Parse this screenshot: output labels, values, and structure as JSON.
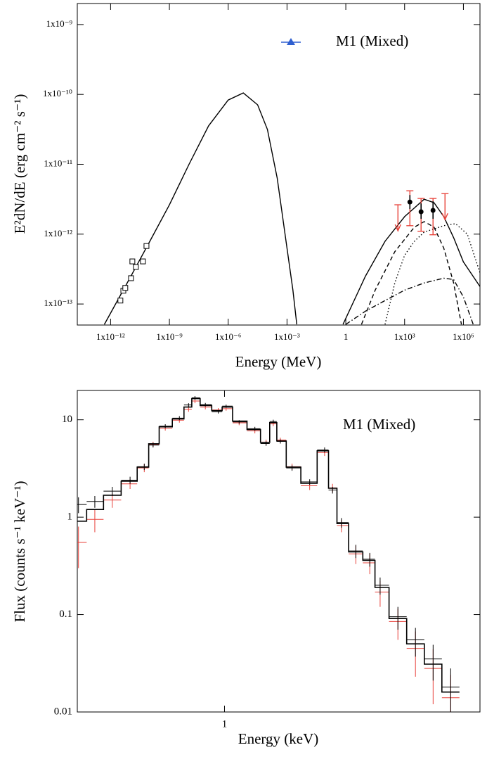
{
  "chart_data": [
    {
      "type": "line",
      "xlabel": "Energy (MeV)",
      "ylabel": "E²dN/dE (erg cm⁻² s⁻¹)",
      "xscale": "log",
      "yscale": "log",
      "xlim": [
        2e-14,
        7000000.0
      ],
      "ylim": [
        5e-14,
        2e-09
      ],
      "xticks": [
        {
          "value": 1e-12,
          "label": "1x10⁻¹²"
        },
        {
          "value": 1e-09,
          "label": "1x10⁻⁹"
        },
        {
          "value": 1e-06,
          "label": "1x10⁻⁶"
        },
        {
          "value": 0.001,
          "label": "1x10⁻³"
        },
        1,
        {
          "value": 1000,
          "label": "1x10³"
        },
        {
          "value": 1000000,
          "label": "1x10⁶"
        }
      ],
      "yticks": [
        {
          "value": 1e-13,
          "label": "1x10⁻¹³"
        },
        {
          "value": 1e-12,
          "label": "1x10⁻¹²"
        },
        {
          "value": 1e-11,
          "label": "1x10⁻¹¹"
        },
        {
          "value": 1e-10,
          "label": "1x10⁻¹⁰"
        },
        {
          "value": 1e-09,
          "label": "1x10⁻⁹"
        }
      ],
      "legend": {
        "label": "M1 (Mixed)",
        "color": "#2f5fd0",
        "marker": "triangle",
        "position": "upper right"
      },
      "series": [
        {
          "color": "#000000",
          "dash": "solid",
          "x": [
            4.8e-13,
            1e-11,
            1e-10,
            1e-09,
            1e-08,
            1e-07,
            1e-06,
            5.9e-06,
            3.16e-05,
            0.0001,
            0.000316,
            0.001,
            0.002,
            0.00316
          ],
          "values": [
            5.1e-14,
            2.4e-13,
            7.9e-13,
            2.63e-12,
            1e-11,
            3.55e-11,
            8.3e-11,
            1.05e-10,
            7.1e-11,
            3.16e-11,
            6.3e-12,
            6.3e-13,
            1.58e-13,
            5.1e-14
          ]
        },
        {
          "color": "#000000",
          "dash": "solid",
          "x": [
            0.72,
            10,
            100,
            1000,
            10000,
            31600,
            100000,
            316000,
            1000000,
            7000000
          ],
          "values": [
            5.1e-14,
            2.5e-13,
            7.9e-13,
            1.78e-12,
            3.16e-12,
            2.82e-12,
            1.78e-12,
            8.9e-13,
            4e-13,
            1.78e-13
          ]
        },
        {
          "color": "#000000",
          "dash": "dotted",
          "x": [
            100,
            316,
            1000,
            3162,
            10000,
            100000,
            398000,
            1580000,
            7000000
          ],
          "values": [
            5.1e-14,
            2e-13,
            5e-13,
            7.9e-13,
            1.07e-12,
            1.32e-12,
            1.41e-12,
            1e-12,
            2.8e-13
          ]
        },
        {
          "color": "#000000",
          "dash": "dashed",
          "x": [
            6.3,
            31.6,
            316,
            3162,
            10000,
            31600,
            100000,
            316000,
            790000
          ],
          "values": [
            5.1e-14,
            1.58e-13,
            5.6e-13,
            1.26e-12,
            1.51e-12,
            1.26e-12,
            6.3e-13,
            2e-13,
            5.1e-14
          ]
        },
        {
          "color": "#000000",
          "dash": "dashdot",
          "x": [
            1,
            10,
            100,
            1000,
            10000,
            100000,
            316000,
            1000000,
            3160000
          ],
          "values": [
            5.1e-14,
            7.9e-14,
            1.12e-13,
            1.58e-13,
            2e-13,
            2.34e-13,
            2.24e-13,
            1.26e-13,
            5.1e-14
          ]
        }
      ],
      "points": [
        {
          "marker": "square",
          "color": "#000000",
          "x": [
            3.16e-12,
            4.47e-12,
            5.62e-12,
            1.1e-11,
            1.29e-11,
            1.95e-11,
            4.47e-11,
            6.76e-11
          ],
          "values": [
            1.12e-13,
            1.55e-13,
            1.7e-13,
            2.34e-13,
            4.07e-13,
            3.39e-13,
            4.07e-13,
            6.76e-13
          ]
        },
        {
          "marker": "circle",
          "color": "#000000",
          "err_color": "#e8453c",
          "x": [
            1860,
            6920,
            28200
          ],
          "values": [
            2.88e-12,
            2.09e-12,
            2.19e-12
          ],
          "stat_low": [
            2.29e-12,
            1.66e-12,
            1.66e-12
          ],
          "stat_high": [
            3.63e-12,
            2.75e-12,
            2.95e-12
          ],
          "sys_low": [
            1.32e-12,
            1.1e-12,
            9.8e-13
          ],
          "sys_high": [
            4.17e-12,
            3.24e-12,
            3.24e-12
          ]
        },
        {
          "marker": "upper-limit",
          "color": "#e8453c",
          "x": [
            457,
            115000
          ],
          "values": [
            2.63e-12,
            3.8e-12
          ]
        }
      ]
    },
    {
      "type": "step",
      "xlabel": "Energy (keV)",
      "ylabel": "Flux (counts s⁻¹ keV⁻¹)",
      "annotation": "M1 (Mixed)",
      "xscale": "log",
      "yscale": "log",
      "xlim": [
        0.405,
        4.8
      ],
      "ylim": [
        0.01,
        20
      ],
      "xticks": [
        1
      ],
      "yticks": [
        0.01,
        0.1,
        1,
        10
      ],
      "x": [
        0.408,
        0.451,
        0.502,
        0.56,
        0.611,
        0.645,
        0.695,
        0.758,
        0.802,
        0.834,
        0.889,
        0.962,
        1.01,
        1.094,
        1.205,
        1.291,
        1.349,
        1.409,
        1.514,
        1.687,
        1.849,
        1.941,
        2.05,
        2.24,
        2.44,
        2.6,
        2.9,
        3.23,
        3.6,
        4.01
      ],
      "series": [
        {
          "color": "#e8413a",
          "style": "errorbar",
          "values": [
            0.55,
            0.95,
            1.5,
            2.2,
            3.2,
            5.6,
            8.2,
            9.9,
            12.8,
            15.6,
            13.5,
            12.6,
            13.0,
            9.3,
            7.7,
            5.9,
            9.1,
            6.2,
            3.3,
            2.1,
            4.6,
            2.0,
            0.82,
            0.42,
            0.34,
            0.17,
            0.085,
            0.045,
            0.028,
            0.014
          ],
          "errors": [
            0.25,
            0.25,
            0.25,
            0.25,
            0.3,
            0.35,
            0.45,
            0.55,
            0.7,
            0.8,
            0.7,
            0.6,
            0.6,
            0.5,
            0.45,
            0.35,
            0.5,
            0.35,
            0.25,
            0.2,
            0.35,
            0.2,
            0.12,
            0.09,
            0.08,
            0.05,
            0.03,
            0.022,
            0.016,
            0.01
          ]
        },
        {
          "color": "#000000",
          "style": "errorbar",
          "values": [
            1.35,
            1.45,
            1.85,
            2.4,
            3.3,
            5.5,
            8.6,
            10.4,
            14.2,
            16.8,
            14.3,
            12.1,
            13.8,
            9.5,
            8.1,
            5.7,
            9.6,
            6.0,
            3.2,
            2.3,
            4.9,
            1.9,
            0.88,
            0.45,
            0.37,
            0.2,
            0.095,
            0.055,
            0.035,
            0.018
          ],
          "errors": [
            0.25,
            0.2,
            0.2,
            0.2,
            0.25,
            0.3,
            0.4,
            0.5,
            0.6,
            0.7,
            0.6,
            0.5,
            0.5,
            0.4,
            0.35,
            0.3,
            0.4,
            0.3,
            0.2,
            0.15,
            0.3,
            0.15,
            0.1,
            0.07,
            0.06,
            0.04,
            0.025,
            0.018,
            0.014,
            0.01
          ]
        },
        {
          "color": "#000000",
          "style": "step",
          "values": [
            0.91,
            1.2,
            1.68,
            2.34,
            3.27,
            5.67,
            8.47,
            10.2,
            13.5,
            16.5,
            14.0,
            12.4,
            13.5,
            9.68,
            7.93,
            5.86,
            9.35,
            6.06,
            3.27,
            2.23,
            4.8,
            1.98,
            0.86,
            0.44,
            0.36,
            0.19,
            0.091,
            0.05,
            0.031,
            0.016
          ]
        }
      ]
    }
  ]
}
